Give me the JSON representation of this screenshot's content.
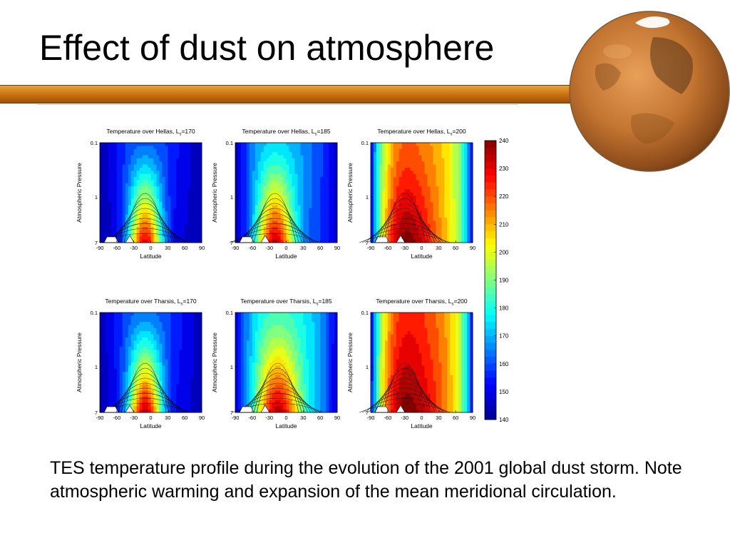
{
  "slide": {
    "title": "Effect of dust on atmosphere",
    "caption": "TES temperature profile during the evolution of the 2001 global dust storm.  Note atmospheric warming and expansion of the mean meridional circulation."
  },
  "colors": {
    "title_bar": "#c7700f",
    "contour_line": "#000000",
    "colormap": [
      "#00008f",
      "#0000ff",
      "#0080ff",
      "#00ffff",
      "#80ff80",
      "#ffff00",
      "#ff8000",
      "#ff0000",
      "#800000"
    ]
  },
  "chart_data": {
    "type": "heatmap",
    "xlabel": "Latitude",
    "ylabel": "Atmospheric Pressure",
    "x_ticks": [
      "-90",
      "-60",
      "-30",
      "0",
      "30",
      "60",
      "90"
    ],
    "y_ticks": [
      "0.1",
      "1",
      "7"
    ],
    "xlim": [
      -90,
      90
    ],
    "ylim": [
      7,
      0.1
    ],
    "y_scale": "log",
    "colorbar": {
      "ticks": [
        "240",
        "230",
        "220",
        "210",
        "200",
        "190",
        "180",
        "170",
        "160",
        "150",
        "140"
      ],
      "range": [
        140,
        240
      ]
    },
    "panels": [
      {
        "title_prefix": "Temperature over Hellas, L",
        "title_sub": "s",
        "title_suffix": "=170",
        "ls": 170,
        "region": "Hellas",
        "approx": {
          "surface_max": 232,
          "upper_min": 148,
          "center_lat": -10,
          "spread": 30
        }
      },
      {
        "title_prefix": "Temperature over Hellas, L",
        "title_sub": "s",
        "title_suffix": "=185",
        "ls": 185,
        "region": "Hellas",
        "approx": {
          "surface_max": 235,
          "upper_min": 160,
          "center_lat": -20,
          "spread": 34
        }
      },
      {
        "title_prefix": "Temperature over Hellas, L",
        "title_sub": "s",
        "title_suffix": "=200",
        "ls": 200,
        "region": "Hellas",
        "approx": {
          "surface_max": 242,
          "upper_min": 205,
          "center_lat": -30,
          "spread": 55
        }
      },
      {
        "title_prefix": "Temperature over Tharsis, L",
        "title_sub": "s",
        "title_suffix": "=170",
        "ls": 170,
        "region": "Tharsis",
        "approx": {
          "surface_max": 236,
          "upper_min": 150,
          "center_lat": -10,
          "spread": 30
        }
      },
      {
        "title_prefix": "Temperature over Tharsis, L",
        "title_sub": "s",
        "title_suffix": "=185",
        "ls": 185,
        "region": "Tharsis",
        "approx": {
          "surface_max": 236,
          "upper_min": 170,
          "center_lat": -15,
          "spread": 40
        }
      },
      {
        "title_prefix": "Temperature over Tharsis, L",
        "title_sub": "s",
        "title_suffix": "=200",
        "ls": 200,
        "region": "Tharsis",
        "approx": {
          "surface_max": 242,
          "upper_min": 212,
          "center_lat": -30,
          "spread": 58
        }
      }
    ]
  }
}
